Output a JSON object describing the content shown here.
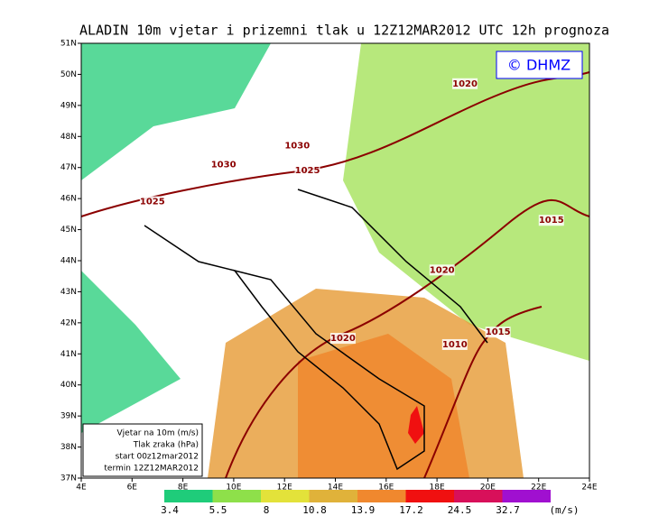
{
  "title": "ALADIN 10m vjetar i prizemni tlak u 12Z12MAR2012 UTC 12h prognoza",
  "copyright": "© DHMZ",
  "lat_range": [
    37,
    51
  ],
  "lon_range": [
    4,
    24
  ],
  "lat_ticks": [
    {
      "value": 37,
      "label": "37N"
    },
    {
      "value": 38,
      "label": "38N"
    },
    {
      "value": 39,
      "label": "39N"
    },
    {
      "value": 40,
      "label": "40N"
    },
    {
      "value": 41,
      "label": "41N"
    },
    {
      "value": 42,
      "label": "42N"
    },
    {
      "value": 43,
      "label": "43N"
    },
    {
      "value": 44,
      "label": "44N"
    },
    {
      "value": 45,
      "label": "45N"
    },
    {
      "value": 46,
      "label": "46N"
    },
    {
      "value": 47,
      "label": "47N"
    },
    {
      "value": 48,
      "label": "48N"
    },
    {
      "value": 49,
      "label": "49N"
    },
    {
      "value": 50,
      "label": "50N"
    },
    {
      "value": 51,
      "label": "51N"
    }
  ],
  "lon_ticks": [
    {
      "value": 4,
      "label": "4E"
    },
    {
      "value": 6,
      "label": "6E"
    },
    {
      "value": 8,
      "label": "8E"
    },
    {
      "value": 10,
      "label": "10E"
    },
    {
      "value": 12,
      "label": "12E"
    },
    {
      "value": 14,
      "label": "14E"
    },
    {
      "value": 16,
      "label": "16E"
    },
    {
      "value": 18,
      "label": "18E"
    },
    {
      "value": 20,
      "label": "20E"
    },
    {
      "value": 22,
      "label": "22E"
    },
    {
      "value": 24,
      "label": "24E"
    }
  ],
  "legend_box": [
    "Vjetar na 10m (m/s)",
    "Tlak zraka (hPa)",
    "start 00z12mar2012",
    "termin 12Z12MAR2012"
  ],
  "isobars": [
    {
      "label": "1030",
      "lon": 12.5,
      "lat": 47.7
    },
    {
      "label": "1030",
      "lon": 9.6,
      "lat": 47.1
    },
    {
      "label": "1025",
      "lon": 12.9,
      "lat": 46.9
    },
    {
      "label": "1025",
      "lon": 6.8,
      "lat": 45.9
    },
    {
      "label": "1020",
      "lon": 19.1,
      "lat": 49.7
    },
    {
      "label": "1015",
      "lon": 22.5,
      "lat": 45.3
    },
    {
      "label": "1020",
      "lon": 18.2,
      "lat": 43.7
    },
    {
      "label": "1020",
      "lon": 14.3,
      "lat": 41.5
    },
    {
      "label": "1010",
      "lon": 18.7,
      "lat": 41.3
    },
    {
      "label": "1015",
      "lon": 20.4,
      "lat": 41.7
    }
  ],
  "colorbar": {
    "levels": [
      {
        "value": 3.4,
        "color": "#1fcc7a"
      },
      {
        "value": 5.5,
        "color": "#8ee04a"
      },
      {
        "value": 8,
        "color": "#e3e23a"
      },
      {
        "value": 10.8,
        "color": "#e0b23a"
      },
      {
        "value": 13.9,
        "color": "#f0882e"
      },
      {
        "value": 17.2,
        "color": "#f01010"
      },
      {
        "value": 24.5,
        "color": "#d8105a"
      },
      {
        "value": 32.7,
        "color": "#a010d0"
      }
    ],
    "units": "(m/s)"
  }
}
